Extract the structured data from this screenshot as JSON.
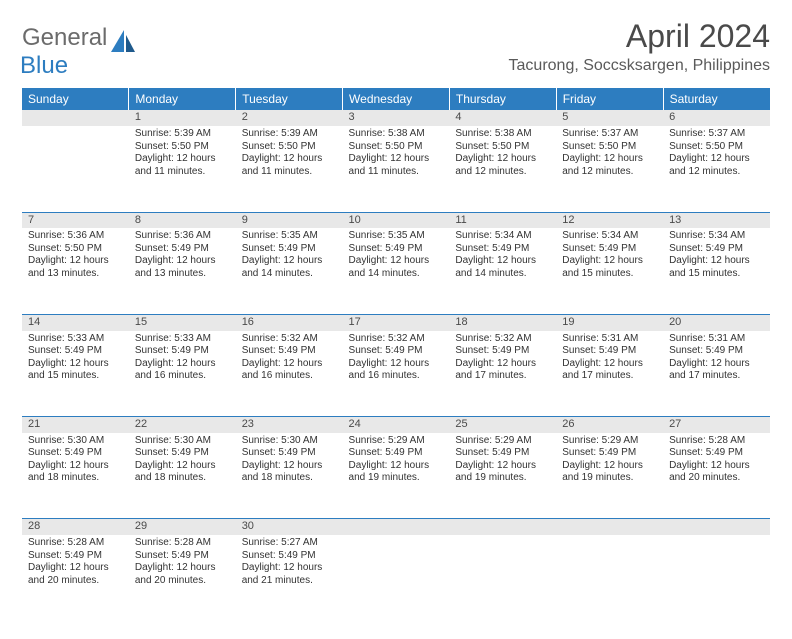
{
  "logo": {
    "part1": "General",
    "part2": "Blue"
  },
  "title": "April 2024",
  "location": "Tacurong, Soccsksargen, Philippines",
  "colors": {
    "header_bg": "#2d7dc0",
    "header_text": "#ffffff",
    "daynum_bg": "#e8e8e8",
    "row_divider": "#2d7dc0",
    "logo_gray": "#6b6b6b",
    "logo_blue": "#2d7dc0",
    "title_color": "#4a4a4a",
    "location_color": "#5a5a5a",
    "cell_text": "#333333"
  },
  "typography": {
    "title_fontsize": 32,
    "location_fontsize": 16,
    "weekday_fontsize": 12,
    "daynum_fontsize": 11,
    "cell_fontsize": 10
  },
  "weekdays": [
    "Sunday",
    "Monday",
    "Tuesday",
    "Wednesday",
    "Thursday",
    "Friday",
    "Saturday"
  ],
  "weeks": [
    [
      {
        "n": "",
        "sunrise": "",
        "sunset": "",
        "daylight": ""
      },
      {
        "n": "1",
        "sunrise": "Sunrise: 5:39 AM",
        "sunset": "Sunset: 5:50 PM",
        "daylight": "Daylight: 12 hours and 11 minutes."
      },
      {
        "n": "2",
        "sunrise": "Sunrise: 5:39 AM",
        "sunset": "Sunset: 5:50 PM",
        "daylight": "Daylight: 12 hours and 11 minutes."
      },
      {
        "n": "3",
        "sunrise": "Sunrise: 5:38 AM",
        "sunset": "Sunset: 5:50 PM",
        "daylight": "Daylight: 12 hours and 11 minutes."
      },
      {
        "n": "4",
        "sunrise": "Sunrise: 5:38 AM",
        "sunset": "Sunset: 5:50 PM",
        "daylight": "Daylight: 12 hours and 12 minutes."
      },
      {
        "n": "5",
        "sunrise": "Sunrise: 5:37 AM",
        "sunset": "Sunset: 5:50 PM",
        "daylight": "Daylight: 12 hours and 12 minutes."
      },
      {
        "n": "6",
        "sunrise": "Sunrise: 5:37 AM",
        "sunset": "Sunset: 5:50 PM",
        "daylight": "Daylight: 12 hours and 12 minutes."
      }
    ],
    [
      {
        "n": "7",
        "sunrise": "Sunrise: 5:36 AM",
        "sunset": "Sunset: 5:50 PM",
        "daylight": "Daylight: 12 hours and 13 minutes."
      },
      {
        "n": "8",
        "sunrise": "Sunrise: 5:36 AM",
        "sunset": "Sunset: 5:49 PM",
        "daylight": "Daylight: 12 hours and 13 minutes."
      },
      {
        "n": "9",
        "sunrise": "Sunrise: 5:35 AM",
        "sunset": "Sunset: 5:49 PM",
        "daylight": "Daylight: 12 hours and 14 minutes."
      },
      {
        "n": "10",
        "sunrise": "Sunrise: 5:35 AM",
        "sunset": "Sunset: 5:49 PM",
        "daylight": "Daylight: 12 hours and 14 minutes."
      },
      {
        "n": "11",
        "sunrise": "Sunrise: 5:34 AM",
        "sunset": "Sunset: 5:49 PM",
        "daylight": "Daylight: 12 hours and 14 minutes."
      },
      {
        "n": "12",
        "sunrise": "Sunrise: 5:34 AM",
        "sunset": "Sunset: 5:49 PM",
        "daylight": "Daylight: 12 hours and 15 minutes."
      },
      {
        "n": "13",
        "sunrise": "Sunrise: 5:34 AM",
        "sunset": "Sunset: 5:49 PM",
        "daylight": "Daylight: 12 hours and 15 minutes."
      }
    ],
    [
      {
        "n": "14",
        "sunrise": "Sunrise: 5:33 AM",
        "sunset": "Sunset: 5:49 PM",
        "daylight": "Daylight: 12 hours and 15 minutes."
      },
      {
        "n": "15",
        "sunrise": "Sunrise: 5:33 AM",
        "sunset": "Sunset: 5:49 PM",
        "daylight": "Daylight: 12 hours and 16 minutes."
      },
      {
        "n": "16",
        "sunrise": "Sunrise: 5:32 AM",
        "sunset": "Sunset: 5:49 PM",
        "daylight": "Daylight: 12 hours and 16 minutes."
      },
      {
        "n": "17",
        "sunrise": "Sunrise: 5:32 AM",
        "sunset": "Sunset: 5:49 PM",
        "daylight": "Daylight: 12 hours and 16 minutes."
      },
      {
        "n": "18",
        "sunrise": "Sunrise: 5:32 AM",
        "sunset": "Sunset: 5:49 PM",
        "daylight": "Daylight: 12 hours and 17 minutes."
      },
      {
        "n": "19",
        "sunrise": "Sunrise: 5:31 AM",
        "sunset": "Sunset: 5:49 PM",
        "daylight": "Daylight: 12 hours and 17 minutes."
      },
      {
        "n": "20",
        "sunrise": "Sunrise: 5:31 AM",
        "sunset": "Sunset: 5:49 PM",
        "daylight": "Daylight: 12 hours and 17 minutes."
      }
    ],
    [
      {
        "n": "21",
        "sunrise": "Sunrise: 5:30 AM",
        "sunset": "Sunset: 5:49 PM",
        "daylight": "Daylight: 12 hours and 18 minutes."
      },
      {
        "n": "22",
        "sunrise": "Sunrise: 5:30 AM",
        "sunset": "Sunset: 5:49 PM",
        "daylight": "Daylight: 12 hours and 18 minutes."
      },
      {
        "n": "23",
        "sunrise": "Sunrise: 5:30 AM",
        "sunset": "Sunset: 5:49 PM",
        "daylight": "Daylight: 12 hours and 18 minutes."
      },
      {
        "n": "24",
        "sunrise": "Sunrise: 5:29 AM",
        "sunset": "Sunset: 5:49 PM",
        "daylight": "Daylight: 12 hours and 19 minutes."
      },
      {
        "n": "25",
        "sunrise": "Sunrise: 5:29 AM",
        "sunset": "Sunset: 5:49 PM",
        "daylight": "Daylight: 12 hours and 19 minutes."
      },
      {
        "n": "26",
        "sunrise": "Sunrise: 5:29 AM",
        "sunset": "Sunset: 5:49 PM",
        "daylight": "Daylight: 12 hours and 19 minutes."
      },
      {
        "n": "27",
        "sunrise": "Sunrise: 5:28 AM",
        "sunset": "Sunset: 5:49 PM",
        "daylight": "Daylight: 12 hours and 20 minutes."
      }
    ],
    [
      {
        "n": "28",
        "sunrise": "Sunrise: 5:28 AM",
        "sunset": "Sunset: 5:49 PM",
        "daylight": "Daylight: 12 hours and 20 minutes."
      },
      {
        "n": "29",
        "sunrise": "Sunrise: 5:28 AM",
        "sunset": "Sunset: 5:49 PM",
        "daylight": "Daylight: 12 hours and 20 minutes."
      },
      {
        "n": "30",
        "sunrise": "Sunrise: 5:27 AM",
        "sunset": "Sunset: 5:49 PM",
        "daylight": "Daylight: 12 hours and 21 minutes."
      },
      {
        "n": "",
        "sunrise": "",
        "sunset": "",
        "daylight": ""
      },
      {
        "n": "",
        "sunrise": "",
        "sunset": "",
        "daylight": ""
      },
      {
        "n": "",
        "sunrise": "",
        "sunset": "",
        "daylight": ""
      },
      {
        "n": "",
        "sunrise": "",
        "sunset": "",
        "daylight": ""
      }
    ]
  ]
}
